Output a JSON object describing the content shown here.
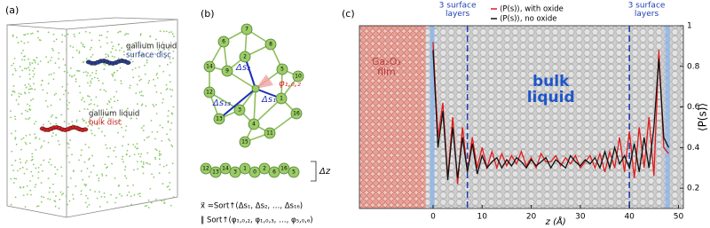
{
  "panel_a": {
    "label": "(a)",
    "surface_label": [
      "gallium liquid",
      "surface disc"
    ],
    "bulk_label": [
      "gallium liquid",
      "bulk disc"
    ]
  },
  "panel_b": {
    "label": "(b)",
    "nodes": [
      "0",
      "1",
      "2",
      "3",
      "4",
      "5",
      "6",
      "7",
      "8",
      "9",
      "10",
      "11",
      "12",
      "13",
      "14",
      "15",
      "16"
    ],
    "side_nodes": [
      "12",
      "13",
      "14",
      "3",
      "1",
      "0",
      "2",
      "6",
      "16",
      "5"
    ],
    "symbols": [
      "Δs₂",
      "Δs₁",
      "Δs₁₃",
      "φ₁,₀,₂",
      "Δz"
    ],
    "formula": [
      "x⃗ =Sort↑(Δs₁, Δs₂, …, Δs₁₆)",
      "‖ Sort↑(φ₁,₀,₂, φ₁,₀,₃, …, φ₅,₀,₆)"
    ]
  },
  "chart_data": {
    "type": "line",
    "panel_label": "(c)",
    "x_label": "z (Å)",
    "y_label": "⟨P(s)⟩",
    "x": [
      0,
      1,
      2,
      3,
      4,
      5,
      6,
      7,
      8,
      9,
      10,
      11,
      12,
      13,
      14,
      15,
      16,
      17,
      18,
      19,
      20,
      21,
      22,
      23,
      24,
      25,
      26,
      27,
      28,
      29,
      30,
      31,
      32,
      33,
      34,
      35,
      36,
      37,
      38,
      39,
      40,
      41,
      42,
      43,
      44,
      45,
      46,
      47,
      48
    ],
    "series": [
      {
        "name": "⟨P(s)⟩, with oxide",
        "color": "#e41a1c",
        "values": [
          0.92,
          0.45,
          0.62,
          0.25,
          0.55,
          0.22,
          0.5,
          0.28,
          0.45,
          0.3,
          0.4,
          0.3,
          0.38,
          0.3,
          0.37,
          0.31,
          0.36,
          0.32,
          0.38,
          0.31,
          0.35,
          0.3,
          0.37,
          0.33,
          0.33,
          0.36,
          0.31,
          0.35,
          0.32,
          0.36,
          0.3,
          0.33,
          0.36,
          0.3,
          0.37,
          0.28,
          0.38,
          0.3,
          0.45,
          0.28,
          0.48,
          0.25,
          0.5,
          0.3,
          0.55,
          0.26,
          0.88,
          0.4,
          0.37
        ]
      },
      {
        "name": "⟨P(s)⟩, no oxide",
        "color": "#111111",
        "values": [
          0.88,
          0.4,
          0.58,
          0.24,
          0.5,
          0.25,
          0.45,
          0.28,
          0.42,
          0.27,
          0.36,
          0.3,
          0.33,
          0.35,
          0.3,
          0.34,
          0.31,
          0.35,
          0.33,
          0.3,
          0.34,
          0.31,
          0.33,
          0.35,
          0.3,
          0.34,
          0.32,
          0.3,
          0.36,
          0.33,
          0.31,
          0.34,
          0.32,
          0.35,
          0.3,
          0.38,
          0.3,
          0.4,
          0.32,
          0.36,
          0.3,
          0.42,
          0.28,
          0.45,
          0.3,
          0.5,
          0.84,
          0.45,
          0.4
        ]
      }
    ],
    "vlines": [
      7,
      40
    ],
    "annotations": [
      {
        "lines": [
          "3 surface",
          "layers"
        ]
      },
      {
        "lines": [
          "3 surface",
          "layers"
        ]
      },
      {
        "lines": [
          "bulk",
          "liquid"
        ]
      },
      {
        "lines": [
          "Ga₂O₃",
          "film"
        ]
      }
    ],
    "xlim": [
      -15,
      51
    ],
    "ylim": [
      0.1,
      1.0
    ],
    "xticks": [
      0,
      10,
      20,
      30,
      40,
      50
    ],
    "yticks": [
      0.2,
      0.4,
      0.6,
      0.8,
      1
    ]
  }
}
